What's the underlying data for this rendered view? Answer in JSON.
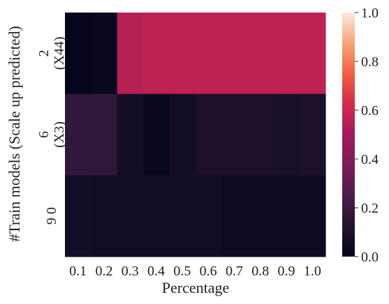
{
  "chart_data": {
    "type": "heatmap",
    "xlabel": "Percentage",
    "ylabel": "#Train models (Scale up predicted)",
    "x": [
      "0.1",
      "0.2",
      "0.3",
      "0.4",
      "0.5",
      "0.6",
      "0.7",
      "0.8",
      "0.9",
      "1.0"
    ],
    "y": [
      [
        "2",
        "(X44)"
      ],
      [
        "6",
        "(X3)"
      ],
      [
        "9 0"
      ]
    ],
    "values": [
      [
        0.01,
        0.03,
        0.55,
        0.57,
        0.57,
        0.57,
        0.57,
        0.57,
        0.57,
        0.57
      ],
      [
        0.17,
        0.17,
        0.07,
        0.03,
        0.06,
        0.1,
        0.1,
        0.1,
        0.09,
        0.1
      ],
      [
        0.07,
        0.06,
        0.06,
        0.06,
        0.06,
        0.06,
        0.05,
        0.05,
        0.05,
        0.05
      ]
    ],
    "colorbar": {
      "range": [
        0.0,
        1.0
      ],
      "ticks": [
        "0.0",
        "0.2",
        "0.4",
        "0.6",
        "0.8",
        "1.0"
      ],
      "colormap": "rocket"
    }
  }
}
